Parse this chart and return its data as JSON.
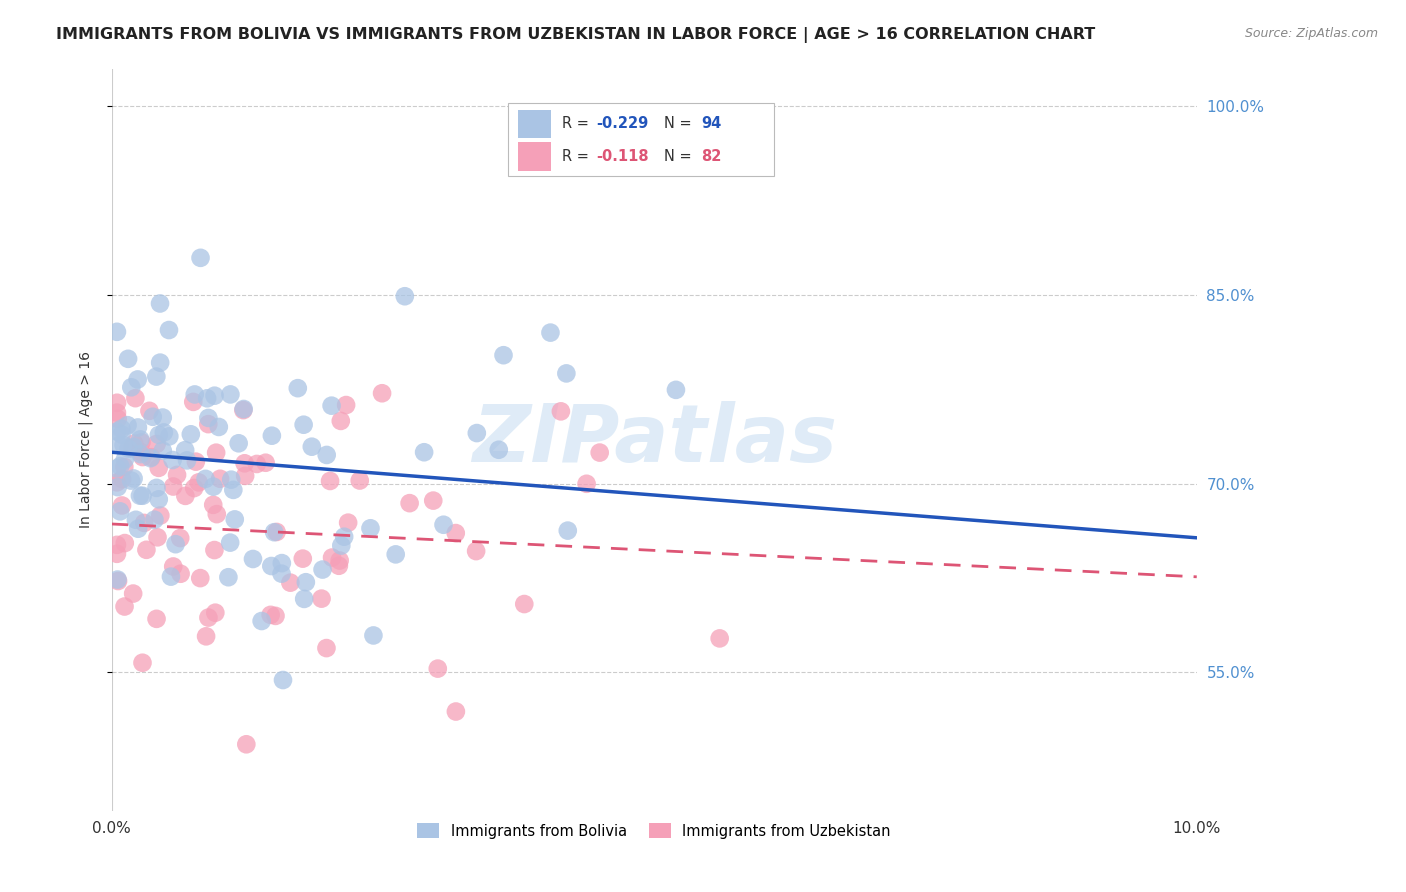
{
  "title": "IMMIGRANTS FROM BOLIVIA VS IMMIGRANTS FROM UZBEKISTAN IN LABOR FORCE | AGE > 16 CORRELATION CHART",
  "source": "Source: ZipAtlas.com",
  "ylabel": "In Labor Force | Age > 16",
  "xlim": [
    0.0,
    0.1
  ],
  "ylim": [
    0.44,
    1.03
  ],
  "yticks": [
    0.55,
    0.7,
    0.85,
    1.0
  ],
  "ytick_labels": [
    "55.0%",
    "70.0%",
    "85.0%",
    "100.0%"
  ],
  "bolivia_color": "#aac4e4",
  "uzbekistan_color": "#f5a0b8",
  "bolivia_line_color": "#2255bb",
  "uzbekistan_line_color": "#dd5575",
  "bolivia_intercept": 0.725,
  "bolivia_slope": -0.68,
  "uzbekistan_intercept": 0.668,
  "uzbekistan_slope": -0.42,
  "legend_label_bolivia_short": "Immigrants from Bolivia",
  "legend_label_uzbekistan_short": "Immigrants from Uzbekistan",
  "watermark": "ZIPatlas",
  "background_color": "#ffffff",
  "grid_color": "#cccccc",
  "axis_tick_color": "#5090d0",
  "title_color": "#222222",
  "title_fontsize": 11.5,
  "source_color": "#888888"
}
